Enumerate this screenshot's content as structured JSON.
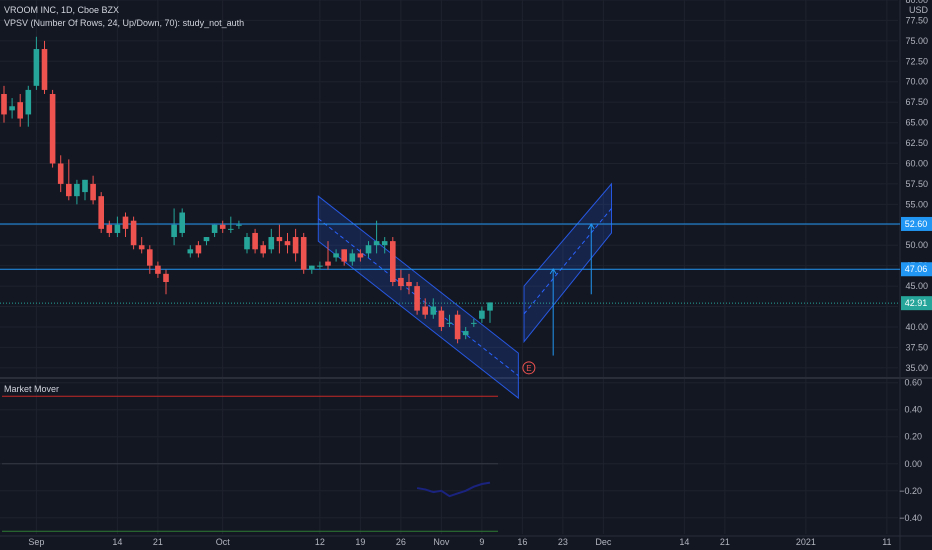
{
  "header": {
    "title": "VROOM INC, 1D, Cboe BZX",
    "study": "VPSV (Number Of Rows, 24, Up/Down, 70): study_not_auth",
    "currency": "USD"
  },
  "lower_pane": {
    "title": "Market Mover",
    "y_ticks": [
      "0.60",
      "0.40",
      "0.20",
      "0.00",
      "−0.20",
      "−0.40"
    ],
    "y_tick_values": [
      0.6,
      0.4,
      0.2,
      0.0,
      -0.2,
      -0.4
    ],
    "ylim": [
      -0.52,
      0.62
    ],
    "lines": [
      {
        "level": 0.5,
        "color": "#c62828"
      },
      {
        "level": 0.0,
        "color": "#363a45"
      },
      {
        "level": -0.5,
        "color": "#2e7d32"
      }
    ],
    "mover_series": {
      "color": "#1a237e",
      "x": [
        51,
        52,
        53,
        54,
        55,
        56,
        57,
        58,
        59,
        60
      ],
      "values": [
        -0.18,
        -0.19,
        -0.21,
        -0.2,
        -0.24,
        -0.22,
        -0.2,
        -0.17,
        -0.15,
        -0.14
      ]
    }
  },
  "x_axis": {
    "tick_labels": [
      "Sep",
      "14",
      "21",
      "Oct",
      "12",
      "19",
      "26",
      "Nov",
      "9",
      "16",
      "23",
      "Dec",
      "14",
      "21",
      "2021",
      "11"
    ],
    "tick_x": [
      4,
      14,
      19,
      27,
      39,
      44,
      49,
      54,
      59,
      64,
      69,
      74,
      84,
      89,
      99,
      109
    ]
  },
  "colors": {
    "up": "#26a69a",
    "down": "#ef5350",
    "hline": "#2196f3",
    "channel": "#2962ff",
    "background": "#131722",
    "grid": "#1e222d"
  },
  "chart_data": {
    "type": "candlestick",
    "title": "VROOM INC, 1D, Cboe BZX",
    "ylim": [
      34,
      80
    ],
    "y_ticks": [
      80,
      77.5,
      75,
      72.5,
      70,
      67.5,
      65,
      62.5,
      60,
      57.5,
      55,
      52.5,
      50,
      47.5,
      45,
      42.5,
      40,
      37.5,
      35
    ],
    "y_tick_labels": [
      "80.00",
      "77.50",
      "75.00",
      "72.50",
      "70.00",
      "67.50",
      "65.00",
      "62.50",
      "60.00",
      "57.50",
      "55.00",
      "52.50",
      "50.00",
      "47.50",
      "45.00",
      "42.50",
      "40.00",
      "37.50",
      "35.00"
    ],
    "x_unit": "trading day",
    "candles": [
      {
        "x": 0,
        "o": 68.5,
        "h": 69.5,
        "c": 66.0,
        "l": 65.0
      },
      {
        "x": 1,
        "o": 66.5,
        "h": 68.0,
        "c": 67.0,
        "l": 65.5
      },
      {
        "x": 2,
        "o": 67.5,
        "h": 68.5,
        "c": 65.5,
        "l": 64.5
      },
      {
        "x": 3,
        "o": 66.0,
        "h": 69.5,
        "c": 69.0,
        "l": 64.5
      },
      {
        "x": 4,
        "o": 69.5,
        "h": 75.5,
        "c": 74.0,
        "l": 69.0
      },
      {
        "x": 5,
        "o": 74.0,
        "h": 75.0,
        "c": 69.0,
        "l": 68.5
      },
      {
        "x": 6,
        "o": 68.5,
        "h": 69.0,
        "c": 60.0,
        "l": 59.5
      },
      {
        "x": 7,
        "o": 60.0,
        "h": 61.0,
        "c": 57.5,
        "l": 56.5
      },
      {
        "x": 8,
        "o": 57.5,
        "h": 60.5,
        "c": 56.0,
        "l": 55.5
      },
      {
        "x": 9,
        "o": 56.0,
        "h": 58.0,
        "c": 57.5,
        "l": 55.0
      },
      {
        "x": 10,
        "o": 56.5,
        "h": 58.0,
        "c": 58.0,
        "l": 55.5
      },
      {
        "x": 11,
        "o": 57.5,
        "h": 58.5,
        "c": 55.5,
        "l": 55.0
      },
      {
        "x": 12,
        "o": 56.0,
        "h": 56.5,
        "c": 52.0,
        "l": 51.5
      },
      {
        "x": 13,
        "o": 52.5,
        "h": 53.0,
        "c": 51.5,
        "l": 51.0
      },
      {
        "x": 14,
        "o": 51.5,
        "h": 53.5,
        "c": 52.5,
        "l": 51.0
      },
      {
        "x": 15,
        "o": 53.5,
        "h": 54.0,
        "c": 52.0,
        "l": 51.0
      },
      {
        "x": 16,
        "o": 53.0,
        "h": 53.5,
        "c": 50.0,
        "l": 49.5
      },
      {
        "x": 17,
        "o": 50.0,
        "h": 51.0,
        "c": 49.5,
        "l": 49.0
      },
      {
        "x": 18,
        "o": 49.5,
        "h": 50.0,
        "c": 47.5,
        "l": 46.5
      },
      {
        "x": 19,
        "o": 47.5,
        "h": 48.0,
        "c": 46.5,
        "l": 46.0
      },
      {
        "x": 20,
        "o": 46.5,
        "h": 47.0,
        "c": 45.5,
        "l": 44.0
      },
      {
        "x": 21,
        "o": 51.0,
        "h": 54.5,
        "c": 52.5,
        "l": 50.0
      },
      {
        "x": 22,
        "o": 51.5,
        "h": 54.5,
        "c": 54.0,
        "l": 51.0
      },
      {
        "x": 23,
        "o": 49.0,
        "h": 50.0,
        "c": 49.5,
        "l": 48.5
      },
      {
        "x": 24,
        "o": 50.0,
        "h": 50.5,
        "c": 49.0,
        "l": 48.5
      },
      {
        "x": 25,
        "o": 50.5,
        "h": 51.0,
        "c": 51.0,
        "l": 50.0
      },
      {
        "x": 26,
        "o": 51.5,
        "h": 52.5,
        "c": 52.5,
        "l": 51.0
      },
      {
        "x": 27,
        "o": 52.5,
        "h": 53.0,
        "c": 52.0,
        "l": 51.5
      },
      {
        "x": 28,
        "o": 52.0,
        "h": 53.5,
        "c": 52.0,
        "l": 51.5
      },
      {
        "x": 29,
        "o": 52.5,
        "h": 53.0,
        "c": 52.5,
        "l": 52.0
      },
      {
        "x": 30,
        "o": 49.5,
        "h": 51.5,
        "c": 51.0,
        "l": 49.0
      },
      {
        "x": 31,
        "o": 51.5,
        "h": 52.0,
        "c": 49.5,
        "l": 49.0
      },
      {
        "x": 32,
        "o": 50.0,
        "h": 50.5,
        "c": 49.0,
        "l": 48.5
      },
      {
        "x": 33,
        "o": 49.5,
        "h": 52.0,
        "c": 51.0,
        "l": 49.0
      },
      {
        "x": 34,
        "o": 51.0,
        "h": 52.5,
        "c": 50.5,
        "l": 49.0
      },
      {
        "x": 35,
        "o": 50.5,
        "h": 51.5,
        "c": 50.0,
        "l": 49.0
      },
      {
        "x": 36,
        "o": 51.0,
        "h": 52.0,
        "c": 49.0,
        "l": 48.0
      },
      {
        "x": 37,
        "o": 51.0,
        "h": 51.5,
        "c": 47.0,
        "l": 46.5
      },
      {
        "x": 38,
        "o": 47.0,
        "h": 47.5,
        "c": 47.5,
        "l": 46.5
      },
      {
        "x": 39,
        "o": 47.5,
        "h": 48.0,
        "c": 47.5,
        "l": 47.0
      },
      {
        "x": 40,
        "o": 48.0,
        "h": 50.5,
        "c": 47.5,
        "l": 47.0
      },
      {
        "x": 41,
        "o": 48.5,
        "h": 49.5,
        "c": 49.0,
        "l": 48.0
      },
      {
        "x": 42,
        "o": 49.5,
        "h": 49.5,
        "c": 48.0,
        "l": 47.5
      },
      {
        "x": 43,
        "o": 48.0,
        "h": 49.5,
        "c": 49.0,
        "l": 47.5
      },
      {
        "x": 44,
        "o": 49.0,
        "h": 49.5,
        "c": 48.5,
        "l": 48.0
      },
      {
        "x": 45,
        "o": 49.0,
        "h": 50.5,
        "c": 50.0,
        "l": 48.5
      },
      {
        "x": 46,
        "o": 50.0,
        "h": 53.0,
        "c": 50.5,
        "l": 49.0
      },
      {
        "x": 47,
        "o": 50.0,
        "h": 51.0,
        "c": 50.5,
        "l": 49.0
      },
      {
        "x": 48,
        "o": 50.5,
        "h": 51.0,
        "c": 45.5,
        "l": 45.0
      },
      {
        "x": 49,
        "o": 46.0,
        "h": 47.0,
        "c": 45.0,
        "l": 44.5
      },
      {
        "x": 50,
        "o": 45.5,
        "h": 46.5,
        "c": 45.0,
        "l": 44.0
      },
      {
        "x": 51,
        "o": 45.0,
        "h": 45.5,
        "c": 42.0,
        "l": 41.5
      },
      {
        "x": 52,
        "o": 42.5,
        "h": 43.5,
        "c": 41.5,
        "l": 41.0
      },
      {
        "x": 53,
        "o": 41.5,
        "h": 43.5,
        "c": 42.5,
        "l": 41.0
      },
      {
        "x": 54,
        "o": 42.0,
        "h": 42.5,
        "c": 40.0,
        "l": 39.5
      },
      {
        "x": 55,
        "o": 40.5,
        "h": 41.5,
        "c": 40.5,
        "l": 40.0
      },
      {
        "x": 56,
        "o": 41.5,
        "h": 42.0,
        "c": 38.5,
        "l": 38.0
      },
      {
        "x": 57,
        "o": 39.0,
        "h": 40.0,
        "c": 39.5,
        "l": 38.5
      },
      {
        "x": 58,
        "o": 40.5,
        "h": 41.0,
        "c": 40.5,
        "l": 40.0
      },
      {
        "x": 59,
        "o": 41.0,
        "h": 42.5,
        "c": 42.0,
        "l": 40.5
      },
      {
        "x": 60,
        "o": 42.0,
        "h": 43.0,
        "c": 43.0,
        "l": 40.5
      }
    ],
    "hlines": [
      {
        "value": 52.6,
        "label": "52.60"
      },
      {
        "value": 47.06,
        "label": "47.06"
      }
    ],
    "last_price": {
      "value": 42.91,
      "label": "42.91"
    },
    "channels": [
      {
        "p1": [
          38.8,
          56.0
        ],
        "p2": [
          63.5,
          36.8
        ],
        "p3": [
          38.8,
          50.5
        ],
        "p4": [
          63.5,
          31.3
        ]
      },
      {
        "p1": [
          64.2,
          45.0
        ],
        "p2": [
          75.0,
          57.5
        ],
        "p3": [
          64.2,
          38.2
        ],
        "p4": [
          75.0,
          51.5
        ]
      }
    ],
    "projection_arrows": [
      {
        "x": 67.8,
        "from": 36.5,
        "to": 47.1
      },
      {
        "x": 72.5,
        "from": 44.0,
        "to": 52.6
      }
    ],
    "event_marker": {
      "x": 64.8,
      "value": 35.0,
      "label": "E"
    }
  }
}
